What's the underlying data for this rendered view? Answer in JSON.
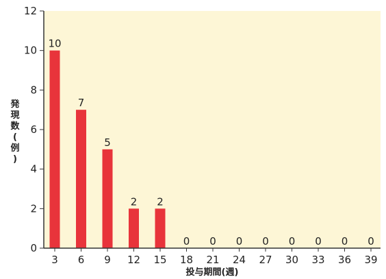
{
  "chart_data": {
    "type": "bar",
    "categories": [
      "3",
      "6",
      "9",
      "12",
      "15",
      "18",
      "21",
      "24",
      "27",
      "30",
      "33",
      "36",
      "39"
    ],
    "values": [
      10,
      7,
      5,
      2,
      2,
      0,
      0,
      0,
      0,
      0,
      0,
      0,
      0
    ],
    "data_labels": [
      "10",
      "7",
      "5",
      "2",
      "2",
      "0",
      "0",
      "0",
      "0",
      "0",
      "0",
      "0",
      "0"
    ],
    "xlabel": "投与期間(週)",
    "ylabel": "発現数(例)",
    "ylim": [
      0,
      12
    ],
    "yticks": [
      "0",
      "2",
      "4",
      "6",
      "8",
      "10",
      "12"
    ],
    "grid": false,
    "colors": {
      "bar": "#e8343b",
      "plot_background": "#fdf6d6",
      "axis": "#333333"
    }
  }
}
